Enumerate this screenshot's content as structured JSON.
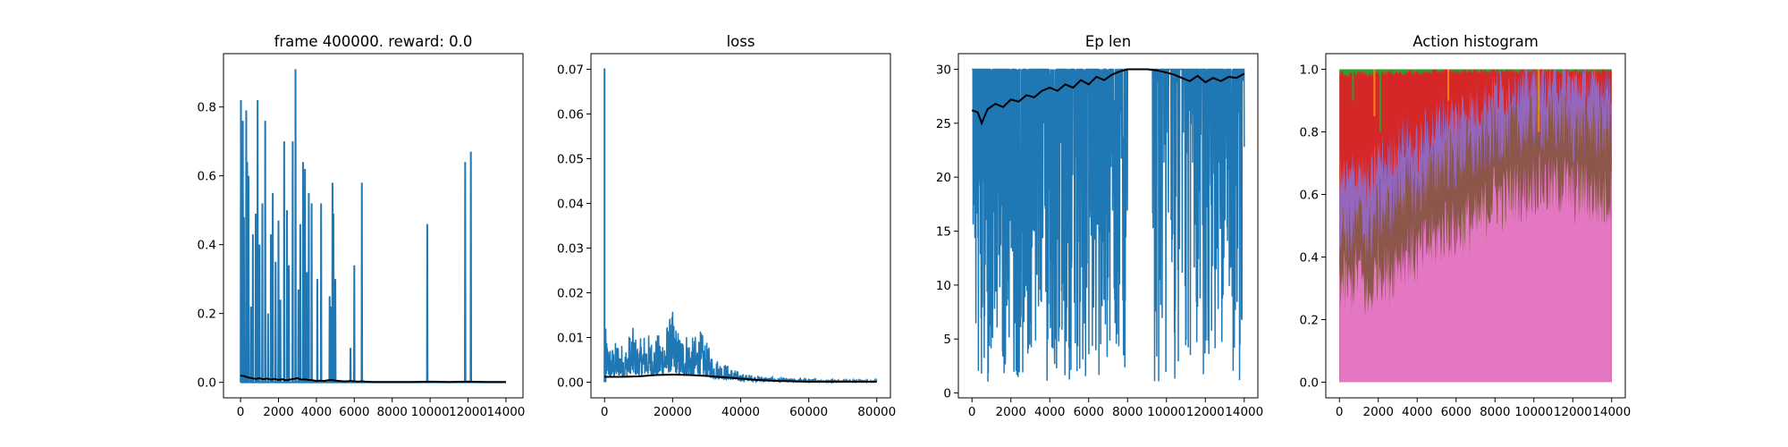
{
  "figure": {
    "background": "#ffffff"
  },
  "chart_data": [
    {
      "type": "line",
      "title": "frame 400000. reward: 0.0",
      "xlim": [
        -900,
        14900
      ],
      "ylim": [
        -0.045,
        0.955
      ],
      "x_ticks": [
        0,
        2000,
        4000,
        6000,
        8000,
        10000,
        12000,
        14000
      ],
      "x_tick_labels": [
        "0",
        "2000",
        "4000",
        "6000",
        "8000",
        "10000",
        "12000",
        "14000"
      ],
      "y_ticks": [
        0.0,
        0.2,
        0.4,
        0.6,
        0.8
      ],
      "y_tick_labels": [
        "0.0",
        "0.2",
        "0.4",
        "0.6",
        "0.8"
      ],
      "raw_color": "#1f77b4",
      "smooth_color": "#000000",
      "raw_spikes": [
        {
          "x": 20,
          "y": 0.82
        },
        {
          "x": 60,
          "y": 0.58
        },
        {
          "x": 120,
          "y": 0.76
        },
        {
          "x": 180,
          "y": 0.48
        },
        {
          "x": 300,
          "y": 0.79
        },
        {
          "x": 350,
          "y": 0.64
        },
        {
          "x": 420,
          "y": 0.6
        },
        {
          "x": 550,
          "y": 0.22
        },
        {
          "x": 650,
          "y": 0.43
        },
        {
          "x": 800,
          "y": 0.49
        },
        {
          "x": 900,
          "y": 0.82
        },
        {
          "x": 1000,
          "y": 0.4
        },
        {
          "x": 1150,
          "y": 0.52
        },
        {
          "x": 1300,
          "y": 0.76
        },
        {
          "x": 1450,
          "y": 0.2
        },
        {
          "x": 1600,
          "y": 0.43
        },
        {
          "x": 1700,
          "y": 0.55
        },
        {
          "x": 1850,
          "y": 0.35
        },
        {
          "x": 2000,
          "y": 0.47
        },
        {
          "x": 2100,
          "y": 0.24
        },
        {
          "x": 2300,
          "y": 0.7
        },
        {
          "x": 2450,
          "y": 0.5
        },
        {
          "x": 2550,
          "y": 0.34
        },
        {
          "x": 2750,
          "y": 0.7
        },
        {
          "x": 2900,
          "y": 0.91
        },
        {
          "x": 3050,
          "y": 0.27
        },
        {
          "x": 3150,
          "y": 0.46
        },
        {
          "x": 3300,
          "y": 0.64
        },
        {
          "x": 3400,
          "y": 0.62
        },
        {
          "x": 3500,
          "y": 0.32
        },
        {
          "x": 3600,
          "y": 0.55
        },
        {
          "x": 3750,
          "y": 0.52
        },
        {
          "x": 4050,
          "y": 0.3
        },
        {
          "x": 4250,
          "y": 0.52
        },
        {
          "x": 4700,
          "y": 0.25
        },
        {
          "x": 4750,
          "y": 0.22
        },
        {
          "x": 4850,
          "y": 0.58
        },
        {
          "x": 4900,
          "y": 0.49
        },
        {
          "x": 5000,
          "y": 0.3
        },
        {
          "x": 5800,
          "y": 0.1
        },
        {
          "x": 6000,
          "y": 0.34
        },
        {
          "x": 6400,
          "y": 0.58
        },
        {
          "x": 9850,
          "y": 0.46
        },
        {
          "x": 11850,
          "y": 0.64
        },
        {
          "x": 12150,
          "y": 0.67
        }
      ],
      "smooth_x": [
        0,
        200,
        400,
        600,
        800,
        1000,
        1200,
        1400,
        1600,
        1800,
        2000,
        2200,
        2400,
        2600,
        2800,
        3000,
        3200,
        3400,
        3600,
        3800,
        4000,
        4200,
        4400,
        4600,
        4800,
        5000,
        5200,
        5400,
        5600,
        5800,
        6000,
        6200,
        6400,
        6600,
        7000,
        8000,
        9000,
        10000,
        11000,
        12000,
        13000,
        14000
      ],
      "smooth_y": [
        0.02,
        0.018,
        0.014,
        0.012,
        0.01,
        0.012,
        0.009,
        0.011,
        0.008,
        0.01,
        0.007,
        0.009,
        0.006,
        0.008,
        0.01,
        0.012,
        0.008,
        0.009,
        0.007,
        0.006,
        0.004,
        0.005,
        0.004,
        0.006,
        0.007,
        0.005,
        0.004,
        0.003,
        0.003,
        0.004,
        0.003,
        0.002,
        0.003,
        0.002,
        0.001,
        0.001,
        0.001,
        0.002,
        0.001,
        0.002,
        0.001,
        0.001
      ]
    },
    {
      "type": "line",
      "title": "loss",
      "xlim": [
        -4000,
        84000
      ],
      "ylim": [
        -0.0035,
        0.0735
      ],
      "x_ticks": [
        0,
        20000,
        40000,
        60000,
        80000
      ],
      "x_tick_labels": [
        "0",
        "20000",
        "40000",
        "60000",
        "80000"
      ],
      "y_ticks": [
        0.0,
        0.01,
        0.02,
        0.03,
        0.04,
        0.05,
        0.06,
        0.07
      ],
      "y_tick_labels": [
        "0.00",
        "0.01",
        "0.02",
        "0.03",
        "0.04",
        "0.05",
        "0.06",
        "0.07"
      ],
      "raw_color": "#1f77b4",
      "smooth_color": "#000000",
      "raw_envelope_x": [
        0,
        2000,
        4000,
        6000,
        8000,
        10000,
        12000,
        14000,
        16000,
        18000,
        20000,
        22000,
        24000,
        26000,
        28000,
        30000,
        32000,
        34000,
        36000,
        38000,
        40000,
        45000,
        50000,
        55000,
        60000,
        65000,
        70000,
        75000,
        80000
      ],
      "raw_envelope_high": [
        0.012,
        0.008,
        0.01,
        0.008,
        0.013,
        0.009,
        0.012,
        0.01,
        0.011,
        0.013,
        0.016,
        0.011,
        0.012,
        0.01,
        0.012,
        0.009,
        0.006,
        0.005,
        0.004,
        0.003,
        0.002,
        0.0015,
        0.001,
        0.0008,
        0.0007,
        0.0006,
        0.0006,
        0.0005,
        0.0005
      ],
      "raw_spikes": [
        {
          "x": 0,
          "y": 0.0702
        },
        {
          "x": 300,
          "y": 0.012
        }
      ],
      "smooth_x": [
        0,
        5000,
        10000,
        15000,
        20000,
        25000,
        30000,
        35000,
        40000,
        45000,
        50000,
        55000,
        60000,
        65000,
        70000,
        75000,
        80000
      ],
      "smooth_y": [
        0.0012,
        0.0012,
        0.0013,
        0.0016,
        0.0017,
        0.0016,
        0.0014,
        0.0011,
        0.0008,
        0.0005,
        0.0003,
        0.0002,
        0.0001,
        0.0001,
        0.0001,
        0.0001,
        0.0001
      ]
    },
    {
      "type": "line",
      "title": "Ep len",
      "xlim": [
        -700,
        14700
      ],
      "ylim": [
        -0.45,
        31.45
      ],
      "x_ticks": [
        0,
        2000,
        4000,
        6000,
        8000,
        10000,
        12000,
        14000
      ],
      "x_tick_labels": [
        "0",
        "2000",
        "4000",
        "6000",
        "8000",
        "10000",
        "12000",
        "14000"
      ],
      "y_ticks": [
        0,
        5,
        10,
        15,
        20,
        25,
        30
      ],
      "y_tick_labels": [
        "0",
        "5",
        "10",
        "15",
        "20",
        "25",
        "30"
      ],
      "raw_color": "#1f77b4",
      "smooth_color": "#000000",
      "raw_max": 30,
      "raw_min": 1,
      "raw_gap_range": [
        8000,
        9200
      ],
      "smooth_x": [
        0,
        300,
        500,
        800,
        1200,
        1600,
        2000,
        2400,
        2800,
        3200,
        3600,
        4000,
        4400,
        4800,
        5200,
        5600,
        6000,
        6400,
        6800,
        7200,
        7600,
        8000,
        8500,
        9000,
        9500,
        10000,
        10400,
        10800,
        11200,
        11600,
        12000,
        12400,
        12800,
        13200,
        13600,
        14000
      ],
      "smooth_y": [
        26.2,
        26.0,
        25.0,
        26.3,
        26.8,
        26.5,
        27.2,
        27.0,
        27.6,
        27.4,
        28.0,
        28.3,
        28.0,
        28.6,
        28.3,
        29.0,
        28.6,
        29.3,
        29.0,
        29.5,
        29.8,
        30.0,
        30.0,
        30.0,
        29.9,
        29.7,
        29.5,
        29.2,
        28.9,
        29.4,
        28.8,
        29.2,
        28.9,
        29.3,
        29.2,
        29.6
      ]
    },
    {
      "type": "area",
      "title": "Action histogram",
      "xlim": [
        -700,
        14700
      ],
      "ylim": [
        -0.05,
        1.05
      ],
      "x_ticks": [
        0,
        2000,
        4000,
        6000,
        8000,
        10000,
        12000,
        14000
      ],
      "x_tick_labels": [
        "0",
        "2000",
        "4000",
        "6000",
        "8000",
        "10000",
        "12000",
        "14000"
      ],
      "y_ticks": [
        0.0,
        0.2,
        0.4,
        0.6,
        0.8,
        1.0
      ],
      "y_tick_labels": [
        "0.0",
        "0.2",
        "0.4",
        "0.6",
        "0.8",
        "1.0"
      ],
      "stack_colors": [
        "#e377c2",
        "#8c564b",
        "#9467bd",
        "#d62728",
        "#2ca02c",
        "#ff7f0e"
      ],
      "x": [
        0,
        500,
        1000,
        1500,
        2000,
        2500,
        3000,
        3500,
        4000,
        4500,
        5000,
        5500,
        6000,
        6500,
        7000,
        7500,
        8000,
        8500,
        9000,
        9500,
        10000,
        10500,
        11000,
        11500,
        12000,
        12500,
        13000,
        13500,
        14000
      ],
      "pink_top": [
        0.33,
        0.3,
        0.36,
        0.25,
        0.38,
        0.34,
        0.4,
        0.42,
        0.4,
        0.44,
        0.46,
        0.5,
        0.48,
        0.52,
        0.5,
        0.55,
        0.6,
        0.58,
        0.62,
        0.6,
        0.64,
        0.63,
        0.62,
        0.64,
        0.6,
        0.62,
        0.6,
        0.58,
        0.6
      ],
      "brown_top": [
        0.5,
        0.48,
        0.52,
        0.46,
        0.56,
        0.54,
        0.6,
        0.63,
        0.6,
        0.66,
        0.68,
        0.72,
        0.7,
        0.74,
        0.73,
        0.76,
        0.8,
        0.79,
        0.82,
        0.8,
        0.84,
        0.83,
        0.82,
        0.84,
        0.8,
        0.82,
        0.81,
        0.8,
        0.82
      ],
      "purple_top": [
        0.66,
        0.64,
        0.7,
        0.62,
        0.72,
        0.7,
        0.76,
        0.78,
        0.74,
        0.8,
        0.82,
        0.86,
        0.84,
        0.88,
        0.87,
        0.9,
        0.93,
        0.92,
        0.95,
        0.94,
        0.97,
        0.96,
        0.96,
        0.97,
        0.95,
        0.96,
        0.95,
        0.95,
        0.96
      ],
      "red_top": [
        0.99,
        0.98,
        0.99,
        0.98,
        0.99,
        0.99,
        0.99,
        0.99,
        0.99,
        0.99,
        0.995,
        0.995,
        0.995,
        0.995,
        0.995,
        0.995,
        0.995,
        0.995,
        0.995,
        0.995,
        0.995,
        0.995,
        0.995,
        0.995,
        0.995,
        0.995,
        0.995,
        0.995,
        0.995
      ],
      "green_top": [
        1,
        1,
        1,
        1,
        1,
        1,
        1,
        1,
        1,
        1,
        1,
        1,
        1,
        1,
        1,
        1,
        1,
        1,
        1,
        1,
        1,
        1,
        1,
        1,
        1,
        1,
        1,
        1,
        1
      ]
    }
  ]
}
